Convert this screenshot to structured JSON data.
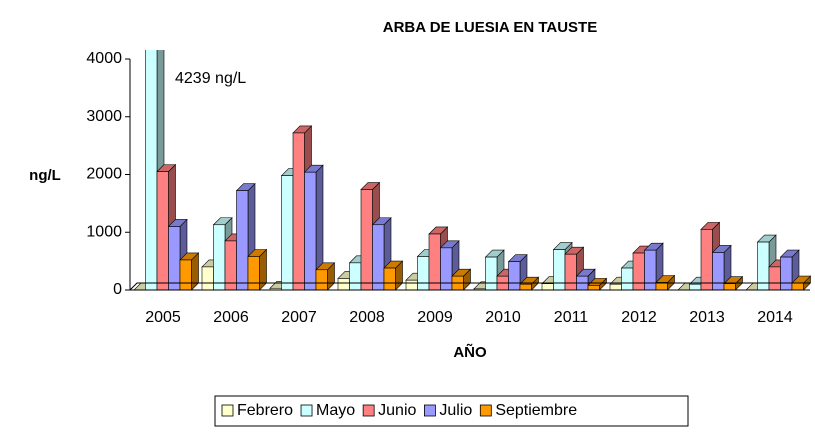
{
  "chart_data": {
    "type": "bar3d",
    "title": "ARBA DE LUESIA EN TAUSTE",
    "y_label": "ng/L",
    "x_label": "AÑO",
    "annotation": "4239 ng/L",
    "categories": [
      "2005",
      "2006",
      "2007",
      "2008",
      "2009",
      "2010",
      "2011",
      "2012",
      "2013",
      "2014"
    ],
    "series": [
      {
        "name": "Febrero",
        "color": "#ffffcc",
        "values": [
          0,
          400,
          30,
          200,
          170,
          20,
          110,
          100,
          0,
          0
        ]
      },
      {
        "name": "Mayo",
        "color": "#ccffff",
        "values": [
          4239,
          1130,
          1980,
          470,
          580,
          570,
          700,
          380,
          100,
          830
        ]
      },
      {
        "name": "Junio",
        "color": "#ff8080",
        "values": [
          2050,
          850,
          2720,
          1740,
          970,
          240,
          620,
          640,
          1050,
          400
        ]
      },
      {
        "name": "Julio",
        "color": "#9999ff",
        "values": [
          1100,
          1720,
          2040,
          1130,
          730,
          490,
          240,
          690,
          650,
          570
        ]
      },
      {
        "name": "Septiembre",
        "color": "#ff9900",
        "values": [
          520,
          580,
          350,
          380,
          240,
          100,
          80,
          130,
          110,
          120
        ]
      }
    ],
    "ylim": [
      0,
      4000
    ],
    "yticks": [
      0,
      1000,
      2000,
      3000,
      4000
    ],
    "legend": "bottom"
  }
}
